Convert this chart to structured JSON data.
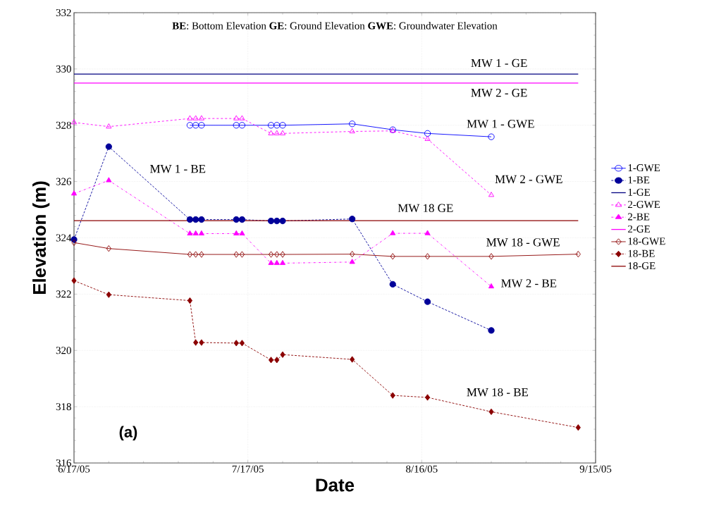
{
  "chart_data": {
    "type": "line",
    "subtitle": "**BE**: Bottom Elevation **GE**: Ground Elevation **GWE**: Groundwater Elevation",
    "xlabel": "Date",
    "ylabel": "Elevation (m)",
    "xlim": [
      "2005-06-17",
      "2005-09-15"
    ],
    "xticks": [
      {
        "value": "2005-06-17",
        "label": "6/17/05"
      },
      {
        "value": "2005-07-17",
        "label": "7/17/05"
      },
      {
        "value": "2005-08-16",
        "label": "8/16/05"
      },
      {
        "value": "2005-09-15",
        "label": "9/15/05"
      }
    ],
    "ylim": [
      316,
      332
    ],
    "yticks": [
      316,
      318,
      320,
      322,
      324,
      326,
      328,
      330,
      332
    ],
    "grid": true,
    "legend": "right",
    "series": [
      {
        "name": "1-GWE",
        "color": "#0000ff",
        "marker": "circle",
        "line_style": "solid",
        "x": [
          "2005-07-07",
          "2005-07-08",
          "2005-07-09",
          "2005-07-15",
          "2005-07-16",
          "2005-07-21",
          "2005-07-22",
          "2005-07-23",
          "2005-08-04",
          "2005-08-11",
          "2005-08-17",
          "2005-08-28"
        ],
        "values": [
          328.0,
          328.0,
          328.0,
          328.0,
          328.0,
          328.0,
          328.0,
          328.0,
          328.05,
          327.84,
          327.71,
          327.59
        ]
      },
      {
        "name": "1-BE",
        "color": "#000099",
        "marker": "circle",
        "line_style": "dotted",
        "x": [
          "2005-06-17",
          "2005-06-23",
          "2005-07-07",
          "2005-07-08",
          "2005-07-09",
          "2005-07-15",
          "2005-07-16",
          "2005-07-21",
          "2005-07-22",
          "2005-07-23",
          "2005-08-04",
          "2005-08-11",
          "2005-08-17",
          "2005-08-28"
        ],
        "values": [
          323.94,
          327.24,
          324.65,
          324.65,
          324.65,
          324.65,
          324.65,
          324.6,
          324.6,
          324.6,
          324.67,
          322.35,
          321.73,
          320.71
        ]
      },
      {
        "name": "1-GE",
        "color": "#000080",
        "marker": "none",
        "line_style": "solid",
        "x": [
          "2005-06-17",
          "2005-09-12"
        ],
        "values": [
          329.82,
          329.82
        ]
      },
      {
        "name": "2-GWE",
        "color": "#ff00ff",
        "marker": "triangle",
        "line_style": "dashed",
        "x": [
          "2005-06-17",
          "2005-06-23",
          "2005-07-07",
          "2005-07-08",
          "2005-07-09",
          "2005-07-15",
          "2005-07-16",
          "2005-07-21",
          "2005-07-22",
          "2005-07-23",
          "2005-08-04",
          "2005-08-11",
          "2005-08-17",
          "2005-08-28"
        ],
        "values": [
          328.1,
          327.95,
          328.24,
          328.24,
          328.24,
          328.24,
          328.24,
          327.71,
          327.71,
          327.71,
          327.78,
          327.8,
          327.51,
          325.52
        ]
      },
      {
        "name": "2-BE",
        "color": "#ff00ff",
        "marker": "triangle",
        "line_style": "dashdot",
        "x": [
          "2005-06-17",
          "2005-06-23",
          "2005-07-07",
          "2005-07-08",
          "2005-07-09",
          "2005-07-15",
          "2005-07-16",
          "2005-07-21",
          "2005-07-22",
          "2005-07-23",
          "2005-08-04",
          "2005-08-11",
          "2005-08-17",
          "2005-08-28"
        ],
        "values": [
          325.57,
          326.04,
          324.15,
          324.15,
          324.15,
          324.15,
          324.15,
          323.1,
          323.1,
          323.1,
          323.14,
          324.16,
          324.16,
          322.27
        ]
      },
      {
        "name": "2-GE",
        "color": "#ff00ff",
        "marker": "none",
        "line_style": "solid",
        "x": [
          "2005-06-17",
          "2005-09-12"
        ],
        "values": [
          329.5,
          329.5
        ]
      },
      {
        "name": "18-GWE",
        "color": "#8b0000",
        "marker": "diamond",
        "line_style": "solid",
        "x": [
          "2005-06-17",
          "2005-06-23",
          "2005-07-07",
          "2005-07-08",
          "2005-07-09",
          "2005-07-15",
          "2005-07-16",
          "2005-07-21",
          "2005-07-22",
          "2005-07-23",
          "2005-08-04",
          "2005-08-11",
          "2005-08-17",
          "2005-08-28",
          "2005-09-12"
        ],
        "values": [
          323.83,
          323.62,
          323.41,
          323.41,
          323.41,
          323.41,
          323.41,
          323.41,
          323.41,
          323.41,
          323.42,
          323.34,
          323.34,
          323.34,
          323.42
        ]
      },
      {
        "name": "18-BE",
        "color": "#8b0000",
        "marker": "diamond",
        "line_style": "dotted",
        "x": [
          "2005-06-17",
          "2005-06-23",
          "2005-07-07",
          "2005-07-08",
          "2005-07-09",
          "2005-07-15",
          "2005-07-16",
          "2005-07-21",
          "2005-07-22",
          "2005-07-23",
          "2005-08-04",
          "2005-08-11",
          "2005-08-17",
          "2005-08-28",
          "2005-09-12"
        ],
        "values": [
          322.48,
          321.98,
          321.77,
          320.28,
          320.28,
          320.26,
          320.26,
          319.66,
          319.66,
          319.85,
          319.68,
          318.4,
          318.33,
          317.82,
          317.26
        ]
      },
      {
        "name": "18-GE",
        "color": "#8b0000",
        "marker": "none",
        "line_style": "solid",
        "x": [
          "2005-06-17",
          "2005-09-12"
        ],
        "values": [
          324.61,
          324.61
        ]
      }
    ],
    "annotations": [
      "MW 1 - GE",
      "MW 2 - GE",
      "MW 1 - GWE",
      "MW 1 - BE",
      "MW 2 - GWE",
      "MW 18 GE",
      "MW 18 - GWE",
      "MW 2 - BE",
      "MW 18 - BE",
      "(a)"
    ]
  }
}
